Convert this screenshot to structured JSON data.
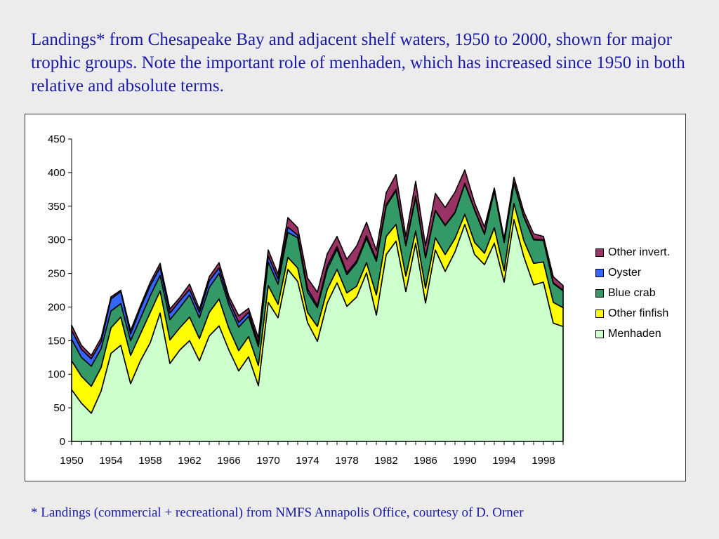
{
  "title": "Landings* from Chesapeake Bay and adjacent shelf waters, 1950 to 2000, shown for major trophic groups. Note the important role of menhaden, which has increased since 1950 in both relative and absolute terms.",
  "footnote": "* Landings (commercial + recreational) from NMFS Annapolis Office, courtesy of D. Orner",
  "chart_data": {
    "type": "area",
    "stacked": true,
    "title": "",
    "xlabel": "",
    "ylabel": "",
    "ylim": [
      0,
      450
    ],
    "yticks": [
      "0",
      "50",
      "100",
      "150",
      "200",
      "250",
      "300",
      "350",
      "400",
      "450"
    ],
    "xlim": [
      1950,
      2000
    ],
    "xticks": [
      "1950",
      "1954",
      "1958",
      "1962",
      "1966",
      "1970",
      "1974",
      "1978",
      "1982",
      "1986",
      "1990",
      "1994",
      "1998"
    ],
    "grid": false,
    "legend_position": "right",
    "x": [
      1950,
      1951,
      1952,
      1953,
      1954,
      1955,
      1956,
      1957,
      1958,
      1959,
      1960,
      1961,
      1962,
      1963,
      1964,
      1965,
      1966,
      1967,
      1968,
      1969,
      1970,
      1971,
      1972,
      1973,
      1974,
      1975,
      1976,
      1977,
      1978,
      1979,
      1980,
      1981,
      1982,
      1983,
      1984,
      1985,
      1986,
      1987,
      1988,
      1989,
      1990,
      1991,
      1992,
      1993,
      1994,
      1995,
      1996,
      1997,
      1998,
      1999,
      2000
    ],
    "series": [
      {
        "name": "Menhaden",
        "color": "#ccffcc",
        "values": [
          77,
          57,
          42,
          75,
          131,
          143,
          86,
          120,
          147,
          191,
          116,
          136,
          150,
          120,
          157,
          172,
          136,
          105,
          126,
          83,
          207,
          184,
          256,
          238,
          177,
          149,
          206,
          236,
          201,
          215,
          251,
          188,
          278,
          298,
          223,
          295,
          206,
          285,
          253,
          282,
          323,
          278,
          263,
          295,
          237,
          330,
          275,
          233,
          237,
          176,
          171
        ]
      },
      {
        "name": "Other finfish",
        "color": "#ffff00",
        "values": [
          43,
          40,
          40,
          35,
          38,
          42,
          42,
          40,
          45,
          33,
          35,
          33,
          35,
          33,
          35,
          40,
          32,
          30,
          30,
          30,
          25,
          20,
          18,
          20,
          15,
          22,
          20,
          20,
          20,
          16,
          15,
          30,
          27,
          25,
          23,
          18,
          22,
          18,
          25,
          20,
          15,
          18,
          17,
          23,
          17,
          24,
          24,
          32,
          30,
          31,
          28
        ]
      },
      {
        "name": "Blue crab",
        "color": "#339966",
        "values": [
          32,
          28,
          30,
          28,
          25,
          20,
          22,
          23,
          25,
          23,
          30,
          30,
          33,
          31,
          37,
          38,
          35,
          35,
          30,
          28,
          35,
          30,
          37,
          45,
          30,
          28,
          30,
          30,
          27,
          35,
          36,
          50,
          45,
          50,
          45,
          50,
          45,
          40,
          43,
          38,
          45,
          48,
          28,
          55,
          42,
          30,
          35,
          35,
          32,
          28,
          25
        ]
      },
      {
        "name": "Oyster",
        "color": "#3366ff",
        "values": [
          13,
          12,
          11,
          10,
          18,
          18,
          10,
          15,
          15,
          12,
          10,
          10,
          8,
          8,
          10,
          8,
          7,
          7,
          6,
          5,
          9,
          8,
          8,
          4,
          5,
          3,
          5,
          4,
          3,
          3,
          4,
          3,
          2,
          2,
          2,
          2,
          1,
          1,
          1,
          1,
          1,
          1,
          1,
          1,
          1,
          1,
          1,
          1,
          1,
          1,
          1
        ]
      },
      {
        "name": "Other invert.",
        "color": "#993366",
        "values": [
          8,
          6,
          5,
          6,
          3,
          2,
          5,
          4,
          5,
          6,
          6,
          5,
          8,
          5,
          6,
          8,
          6,
          10,
          6,
          8,
          9,
          7,
          14,
          11,
          16,
          20,
          18,
          15,
          20,
          22,
          20,
          13,
          18,
          22,
          12,
          22,
          17,
          25,
          26,
          30,
          20,
          10,
          10,
          3,
          5,
          8,
          7,
          8,
          5,
          9,
          7
        ]
      }
    ]
  }
}
